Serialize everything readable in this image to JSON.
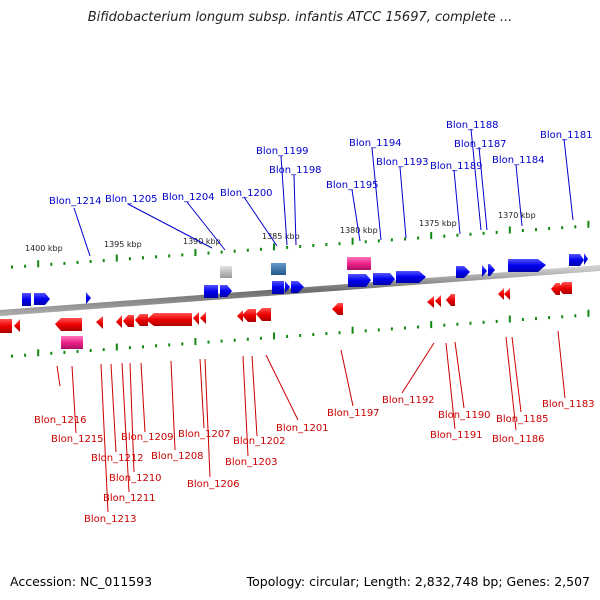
{
  "title": "Bifidobacterium longum subsp. infantis ATCC 15697, complete ...",
  "footer": {
    "accession": "Accession: NC_011593",
    "summary": "Topology: circular; Length: 2,832,748 bp; Genes: 2,507"
  },
  "colors": {
    "forward": "#0000ee",
    "reverse": "#ee0000",
    "rna": "#ee2288",
    "pseudo": "#aaaaaa",
    "other": "#3377aa",
    "tick": "#118811",
    "backbone": "#777777",
    "label_top": "#0000cc",
    "label_bottom": "#cc0000"
  },
  "scale_labels": [
    "1400 kbp",
    "1395 kbp",
    "1390 kbp",
    "1385 kbp",
    "1380 kbp",
    "1375 kbp",
    "1370 kbp"
  ],
  "top_genes": [
    "Blon_1214",
    "Blon_1205",
    "Blon_1204",
    "Blon_1200",
    "Blon_1199",
    "Blon_1198",
    "Blon_1195",
    "Blon_1194",
    "Blon_1193",
    "Blon_1189",
    "Blon_1188",
    "Blon_1187",
    "Blon_1184",
    "Blon_1181"
  ],
  "bottom_genes": [
    "Blon_1216",
    "Blon_1215",
    "Blon_1213",
    "Blon_1212",
    "Blon_1211",
    "Blon_1210",
    "Blon_1209",
    "Blon_1208",
    "Blon_1207",
    "Blon_1206",
    "Blon_1203",
    "Blon_1202",
    "Blon_1201",
    "Blon_1197",
    "Blon_1192",
    "Blon_1191",
    "Blon_1190",
    "Blon_1186",
    "Blon_1185",
    "Blon_1183"
  ]
}
